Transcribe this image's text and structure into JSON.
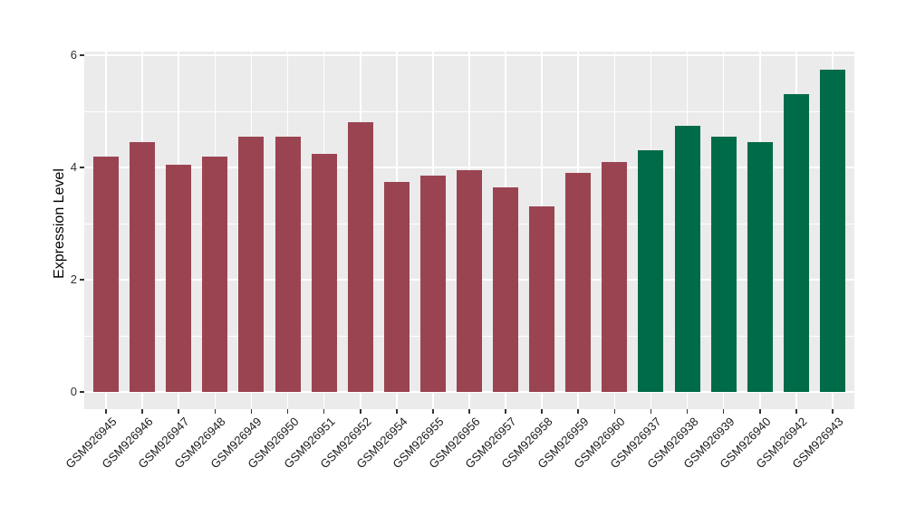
{
  "chart_data": {
    "type": "bar",
    "title": "",
    "xlabel": "",
    "ylabel": "Expression Level",
    "ylim": [
      0,
      6
    ],
    "yticks": [
      0,
      2,
      4,
      6
    ],
    "ytick_labels": [
      "0",
      "2",
      "4",
      "6"
    ],
    "yminor": [
      1,
      3,
      5
    ],
    "grid": "white major and minor gridlines on grey panel",
    "legend_position": "none",
    "panel_bg": "#EBEBEB",
    "grid_color": "#ffffff",
    "group_colors": {
      "red": "#9B4451",
      "green": "#006B48"
    },
    "categories": [
      "GSM926945",
      "GSM926946",
      "GSM926947",
      "GSM926948",
      "GSM926949",
      "GSM926950",
      "GSM926951",
      "GSM926952",
      "GSM926954",
      "GSM926955",
      "GSM926956",
      "GSM926957",
      "GSM926958",
      "GSM926959",
      "GSM926960",
      "GSM926937",
      "GSM926938",
      "GSM926939",
      "GSM926940",
      "GSM926942",
      "GSM926943"
    ],
    "bars": [
      {
        "label": "GSM926945",
        "value": 4.2,
        "color": "#9B4451"
      },
      {
        "label": "GSM926946",
        "value": 4.45,
        "color": "#9B4451"
      },
      {
        "label": "GSM926947",
        "value": 4.05,
        "color": "#9B4451"
      },
      {
        "label": "GSM926948",
        "value": 4.2,
        "color": "#9B4451"
      },
      {
        "label": "GSM926949",
        "value": 4.55,
        "color": "#9B4451"
      },
      {
        "label": "GSM926950",
        "value": 4.55,
        "color": "#9B4451"
      },
      {
        "label": "GSM926951",
        "value": 4.25,
        "color": "#9B4451"
      },
      {
        "label": "GSM926952",
        "value": 4.8,
        "color": "#9B4451"
      },
      {
        "label": "GSM926954",
        "value": 3.75,
        "color": "#9B4451"
      },
      {
        "label": "GSM926955",
        "value": 3.85,
        "color": "#9B4451"
      },
      {
        "label": "GSM926956",
        "value": 3.95,
        "color": "#9B4451"
      },
      {
        "label": "GSM926957",
        "value": 3.65,
        "color": "#9B4451"
      },
      {
        "label": "GSM926958",
        "value": 3.3,
        "color": "#9B4451"
      },
      {
        "label": "GSM926959",
        "value": 3.9,
        "color": "#9B4451"
      },
      {
        "label": "GSM926960",
        "value": 4.1,
        "color": "#9B4451"
      },
      {
        "label": "GSM926937",
        "value": 4.3,
        "color": "#006B48"
      },
      {
        "label": "GSM926938",
        "value": 4.75,
        "color": "#006B48"
      },
      {
        "label": "GSM926939",
        "value": 4.55,
        "color": "#006B48"
      },
      {
        "label": "GSM926940",
        "value": 4.45,
        "color": "#006B48"
      },
      {
        "label": "GSM926942",
        "value": 5.3,
        "color": "#006B48"
      },
      {
        "label": "GSM926943",
        "value": 5.75,
        "color": "#006B48"
      }
    ]
  }
}
